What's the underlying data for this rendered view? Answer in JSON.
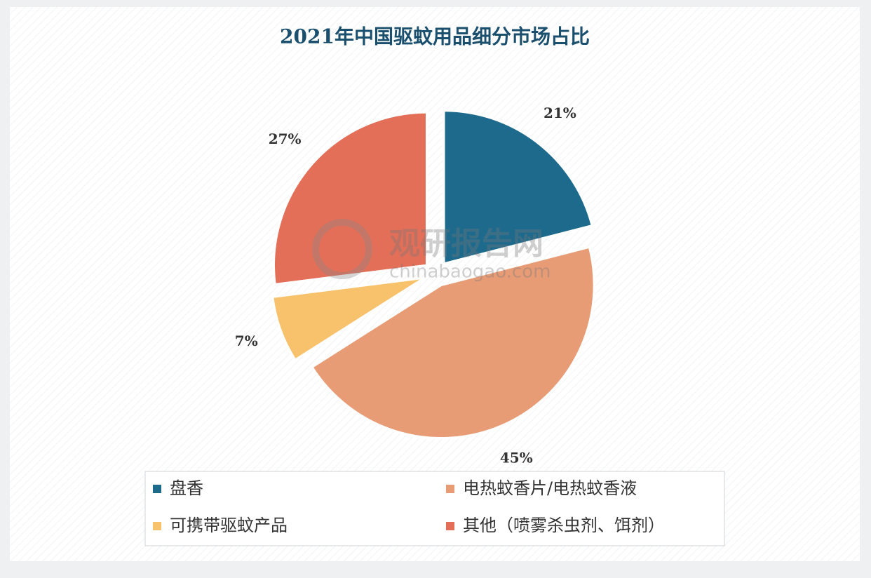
{
  "chart_data": {
    "type": "pie",
    "title": "2021年中国驱蚊用品细分市场占比",
    "categories": [
      "盘香",
      "电热蚊香片/电热蚊香液",
      "可携带驱蚊产品",
      "其他（喷雾杀虫剂、饵剂）"
    ],
    "values": [
      21,
      45,
      7,
      27
    ],
    "value_labels": [
      "21%",
      "45%",
      "7%",
      "27%"
    ],
    "colors": [
      "#1d6a8d",
      "#e79c76",
      "#f8c26c",
      "#e36f59"
    ],
    "legend": "bottom"
  },
  "watermark": {
    "name": "观研报告网",
    "url": "chinabaogao.com"
  }
}
